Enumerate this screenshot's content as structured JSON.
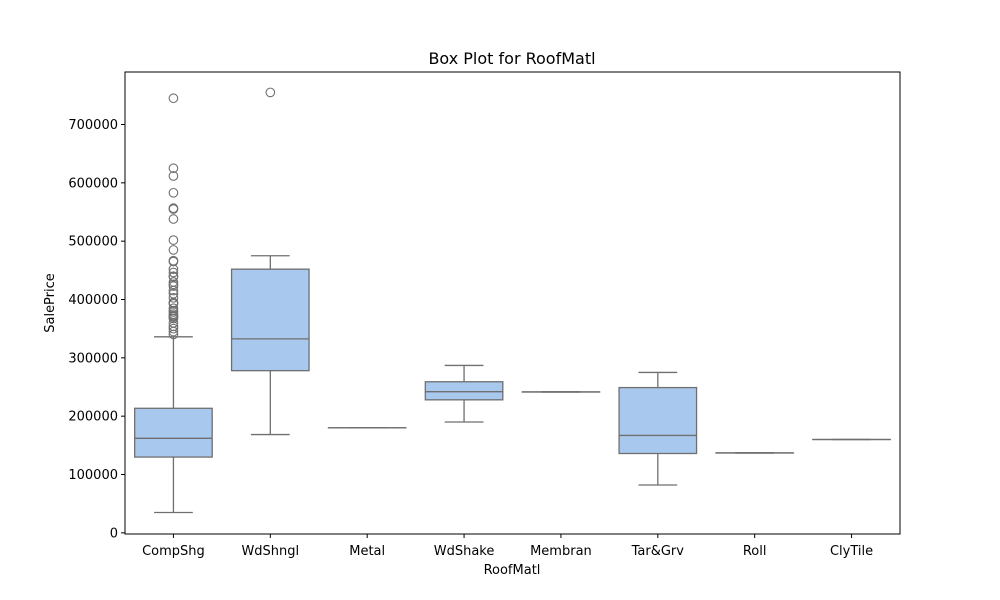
{
  "chart_data": {
    "type": "box",
    "title": "Box Plot for RoofMatl",
    "xlabel": "RoofMatl",
    "ylabel": "SalePrice",
    "ylim": [
      -2000,
      790000
    ],
    "yticks": [
      0,
      100000,
      200000,
      300000,
      400000,
      500000,
      600000,
      700000
    ],
    "ytick_labels": [
      "0",
      "100000",
      "200000",
      "300000",
      "400000",
      "500000",
      "600000",
      "700000"
    ],
    "grid": false,
    "colors": {
      "box_fill": "#a9c8ee",
      "line": "#6f6f6f"
    },
    "categories": [
      "CompShg",
      "WdShngl",
      "Metal",
      "WdShake",
      "Membran",
      "Tar&Grv",
      "Roll",
      "ClyTile"
    ],
    "boxes": [
      {
        "category": "CompShg",
        "whislo": 34900,
        "q1": 129900,
        "med": 162000,
        "q3": 213500,
        "whishi": 336000,
        "fliers": [
          745000,
          625000,
          611657,
          582933,
          556581,
          555000,
          538000,
          501837,
          485000,
          466500,
          465000,
          451950,
          446261,
          440000,
          438780,
          430000,
          426000,
          423000,
          415298,
          410000,
          402861,
          395000,
          394432,
          392500,
          385000,
          381000,
          378500,
          375000,
          372500,
          370878,
          369900,
          367294,
          360000,
          354000,
          350000,
          345000,
          340000
        ]
      },
      {
        "category": "WdShngl",
        "whislo": 168500,
        "q1": 278000,
        "med": 332500,
        "q3": 452000,
        "whishi": 475000,
        "fliers": [
          755000
        ]
      },
      {
        "category": "Metal",
        "whislo": 180000,
        "q1": 180000,
        "med": 180000,
        "q3": 180000,
        "whishi": 180000,
        "fliers": []
      },
      {
        "category": "WdShake",
        "whislo": 190000,
        "q1": 228000,
        "med": 242000,
        "q3": 259000,
        "whishi": 287000,
        "fliers": []
      },
      {
        "category": "Membran",
        "whislo": 241500,
        "q1": 241500,
        "med": 241500,
        "q3": 241500,
        "whishi": 241500,
        "fliers": []
      },
      {
        "category": "Tar&Grv",
        "whislo": 82000,
        "q1": 136000,
        "med": 167000,
        "q3": 249000,
        "whishi": 274970,
        "fliers": []
      },
      {
        "category": "Roll",
        "whislo": 137000,
        "q1": 137000,
        "med": 137000,
        "q3": 137000,
        "whishi": 137000,
        "fliers": []
      },
      {
        "category": "ClyTile",
        "whislo": 160000,
        "q1": 160000,
        "med": 160000,
        "q3": 160000,
        "whishi": 160000,
        "fliers": []
      }
    ]
  }
}
